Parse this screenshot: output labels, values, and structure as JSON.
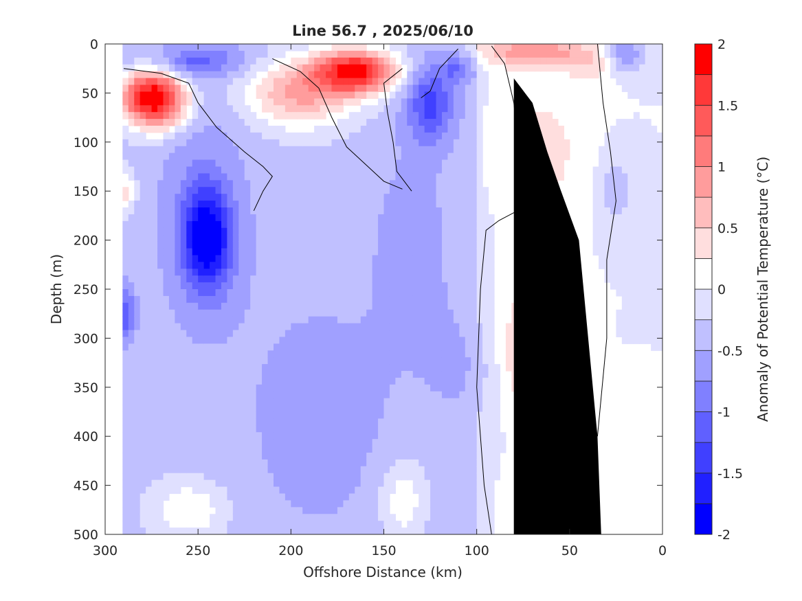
{
  "chart_data": {
    "type": "heatmap",
    "title": "Line 56.7 , 2025/06/10",
    "xlabel": "Offshore Distance (km)",
    "ylabel": "Depth (m)",
    "colorbar_label": "Anomaly of Potential Temperature (°C)",
    "xlim": [
      300,
      0
    ],
    "x_reversed": true,
    "ylim": [
      0,
      500
    ],
    "y_reversed": true,
    "x_ticks": [
      300,
      250,
      200,
      150,
      100,
      50,
      0
    ],
    "x_tick_labels": [
      "300",
      "250",
      "200",
      "150",
      "100",
      "50",
      "0"
    ],
    "y_ticks": [
      0,
      50,
      100,
      150,
      200,
      250,
      300,
      350,
      400,
      450,
      500
    ],
    "y_tick_labels": [
      "0",
      "50",
      "100",
      "150",
      "200",
      "250",
      "300",
      "350",
      "400",
      "450",
      "500"
    ],
    "colorbar": {
      "range": [
        -2,
        2
      ],
      "levels": [
        -2,
        -1.75,
        -1.5,
        -1.25,
        -1,
        -0.75,
        -0.5,
        -0.25,
        0,
        0.25,
        0.5,
        0.75,
        1,
        1.25,
        1.5,
        1.75,
        2
      ],
      "colors": [
        "#0000ff",
        "#2020ff",
        "#4040ff",
        "#6060ff",
        "#8080ff",
        "#a0a0ff",
        "#c0c0ff",
        "#e0e0ff",
        "#ffffff",
        "#ffffff",
        "#ffdede",
        "#ffbdbd",
        "#ff9c9c",
        "#ff7b7b",
        "#ff5a5a",
        "#ff3939",
        "#ff0000"
      ],
      "tick_values": [
        -2,
        -1.5,
        -1,
        -0.5,
        0,
        0.5,
        1,
        1.5,
        2
      ],
      "tick_labels": [
        "-2",
        "-1.5",
        "-1",
        "-0.5",
        "0",
        "0.5",
        "1",
        "1.5",
        "2"
      ]
    },
    "anomaly_centers": [
      {
        "x": 165,
        "y": 28,
        "value": 1.8,
        "sx": 22,
        "sy": 22
      },
      {
        "x": 195,
        "y": 50,
        "value": 0.8,
        "sx": 30,
        "sy": 35
      },
      {
        "x": 278,
        "y": 55,
        "value": 1.4,
        "sx": 16,
        "sy": 28
      },
      {
        "x": 268,
        "y": 55,
        "value": 1.0,
        "sx": 14,
        "sy": 30
      },
      {
        "x": 290,
        "y": 150,
        "value": 0.35,
        "sx": 6,
        "sy": 22
      },
      {
        "x": 70,
        "y": 8,
        "value": 1.0,
        "sx": 26,
        "sy": 15
      },
      {
        "x": 40,
        "y": 20,
        "value": 0.4,
        "sx": 14,
        "sy": 20
      },
      {
        "x": 65,
        "y": 110,
        "value": 0.45,
        "sx": 18,
        "sy": 55
      },
      {
        "x": 75,
        "y": 310,
        "value": 0.5,
        "sx": 14,
        "sy": 65
      },
      {
        "x": 52,
        "y": 455,
        "value": 0.45,
        "sx": 20,
        "sy": 45
      },
      {
        "x": 245,
        "y": 200,
        "value": -1.5,
        "sx": 14,
        "sy": 55
      },
      {
        "x": 248,
        "y": 170,
        "value": -0.7,
        "sx": 24,
        "sy": 120
      },
      {
        "x": 252,
        "y": 18,
        "value": -1.0,
        "sx": 30,
        "sy": 18
      },
      {
        "x": 210,
        "y": 8,
        "value": -0.3,
        "sx": 15,
        "sy": 12
      },
      {
        "x": 125,
        "y": 60,
        "value": -1.3,
        "sx": 13,
        "sy": 40
      },
      {
        "x": 135,
        "y": 200,
        "value": -0.6,
        "sx": 22,
        "sy": 110
      },
      {
        "x": 110,
        "y": 25,
        "value": -0.9,
        "sx": 9,
        "sy": 15
      },
      {
        "x": 290,
        "y": 275,
        "value": -1.2,
        "sx": 6,
        "sy": 28
      },
      {
        "x": 185,
        "y": 380,
        "value": -0.6,
        "sx": 45,
        "sy": 140
      },
      {
        "x": 110,
        "y": 330,
        "value": -0.5,
        "sx": 20,
        "sy": 70
      },
      {
        "x": 20,
        "y": 10,
        "value": -0.8,
        "sx": 10,
        "sy": 18
      },
      {
        "x": 25,
        "y": 150,
        "value": -0.5,
        "sx": 8,
        "sy": 30
      },
      {
        "x": 255,
        "y": 475,
        "value": 0.25,
        "sx": 20,
        "sy": 30
      },
      {
        "x": 140,
        "y": 465,
        "value": 0.25,
        "sx": 12,
        "sy": 40
      }
    ],
    "background_anomaly": -0.35,
    "bathymetry": [
      {
        "x": 33,
        "y": 500
      },
      {
        "x": 35,
        "y": 400
      },
      {
        "x": 40,
        "y": 300
      },
      {
        "x": 45,
        "y": 200
      },
      {
        "x": 55,
        "y": 148
      },
      {
        "x": 62,
        "y": 110
      },
      {
        "x": 70,
        "y": 60
      },
      {
        "x": 80,
        "y": 35
      },
      {
        "x": 80,
        "y": 500
      }
    ],
    "grid": false,
    "legend": "none"
  }
}
